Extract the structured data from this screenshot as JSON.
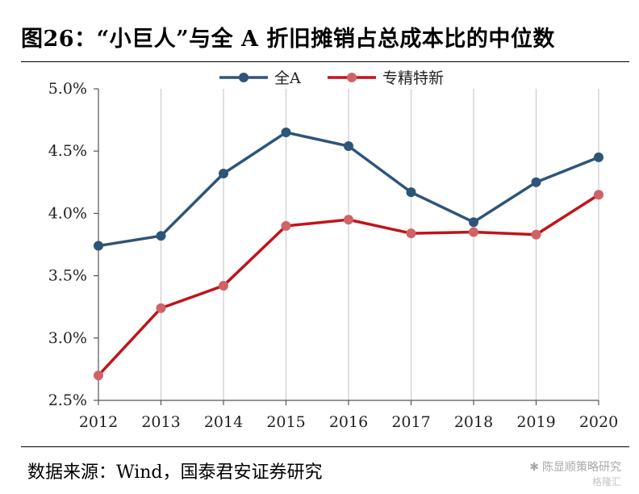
{
  "figure": {
    "title": "图26：“小巨人”与全 A 折旧摊销占总成本比的中位数",
    "source": "数据来源：Wind，国泰君安证券研究",
    "watermark": "陈显顺策略研究",
    "watermark_sub": "格隆汇",
    "watermark_icon": "wechat-icon"
  },
  "chart_data": {
    "type": "line",
    "categories": [
      "2012",
      "2013",
      "2014",
      "2015",
      "2016",
      "2017",
      "2018",
      "2019",
      "2020"
    ],
    "series": [
      {
        "name": "全A",
        "color": "#2e5479",
        "values": [
          3.74,
          3.82,
          4.32,
          4.65,
          4.54,
          4.17,
          3.93,
          4.25,
          4.45
        ]
      },
      {
        "name": "专精特新",
        "color": "#c0141a",
        "marker_color": "#cf6366",
        "values": [
          2.7,
          3.24,
          3.42,
          3.9,
          3.95,
          3.84,
          3.85,
          3.83,
          4.15
        ]
      }
    ],
    "ylim": [
      2.5,
      5.0
    ],
    "yticks": [
      "2.5%",
      "3.0%",
      "3.5%",
      "4.0%",
      "4.5%",
      "5.0%"
    ],
    "ytick_values": [
      2.5,
      3.0,
      3.5,
      4.0,
      4.5,
      5.0
    ],
    "grid": "vertical",
    "grid_color": "#cccccc",
    "legend": "top-center"
  }
}
